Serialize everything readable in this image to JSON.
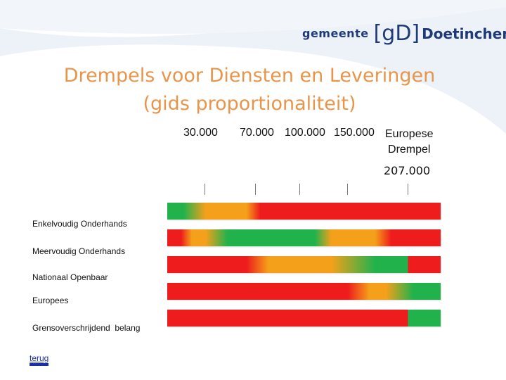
{
  "header": {
    "logo_prefix": "gemeente",
    "logo_mark": "[gD]",
    "logo_city": "Doetinchem"
  },
  "title": {
    "line1": "Drempels voor Diensten en Leveringen",
    "line2": "(gids proportionaliteit)"
  },
  "axis": {
    "ticks": [
      "30.000",
      "70.000",
      "100.000",
      "150.000"
    ],
    "european_label_line1": "Europese",
    "european_label_line2": "Drempel",
    "european_value": "207.000"
  },
  "rows": [
    {
      "label": "Enkelvoudig Onderhands"
    },
    {
      "label": "Meervoudig Onderhands"
    },
    {
      "label": "Nationaal Openbaar"
    },
    {
      "label": "Europees"
    },
    {
      "label": "Grensoverschrijdend  belang"
    }
  ],
  "colors": {
    "green": "#22b24c",
    "orange": "#f5a01a",
    "red": "#ee1c1c",
    "title": "#e8954a",
    "logo": "#1f3a78",
    "link": "#1a2fa8"
  },
  "nav": {
    "back_label": "terug"
  }
}
